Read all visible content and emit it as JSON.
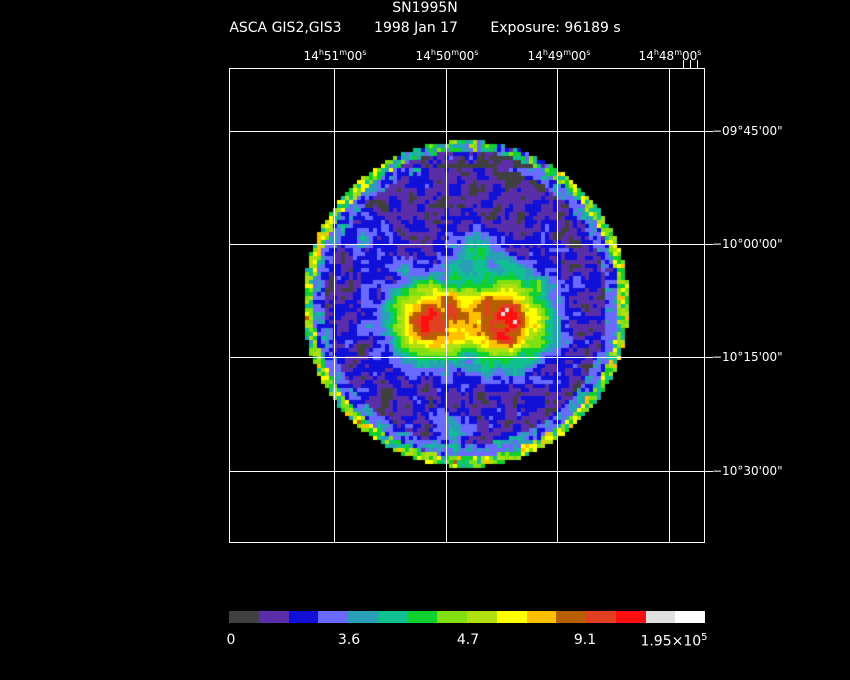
{
  "header": {
    "object": "SN1995N",
    "instrument": "ASCA GIS2,GIS3",
    "date": "1998 Jan 17",
    "exposure": "Exposure: 96189 s"
  },
  "axes": {
    "ra_labels": [
      {
        "h": "14",
        "m": "51",
        "s": "00"
      },
      {
        "h": "14",
        "m": "50",
        "s": "00"
      },
      {
        "h": "14",
        "m": "49",
        "s": "00"
      },
      {
        "h": "14",
        "m": "48",
        "s": "00"
      }
    ],
    "dec_labels": [
      "−09°45'00\"",
      "−10°00'00\"",
      "−10°15'00\"",
      "−10°30'00\""
    ]
  },
  "colorbar": {
    "colors": [
      "#404040",
      "#5a2ea8",
      "#1010d8",
      "#6a6aff",
      "#2aa0b8",
      "#10c090",
      "#10d030",
      "#80e010",
      "#b0e010",
      "#ffff00",
      "#ffc000",
      "#b86000",
      "#e04020",
      "#ff1010",
      "#e0e0e0",
      "#ffffff"
    ],
    "labels": [
      "0",
      "3.6",
      "4.7",
      "9.1"
    ],
    "max_label": "1.95×10",
    "max_exp": "5"
  }
}
